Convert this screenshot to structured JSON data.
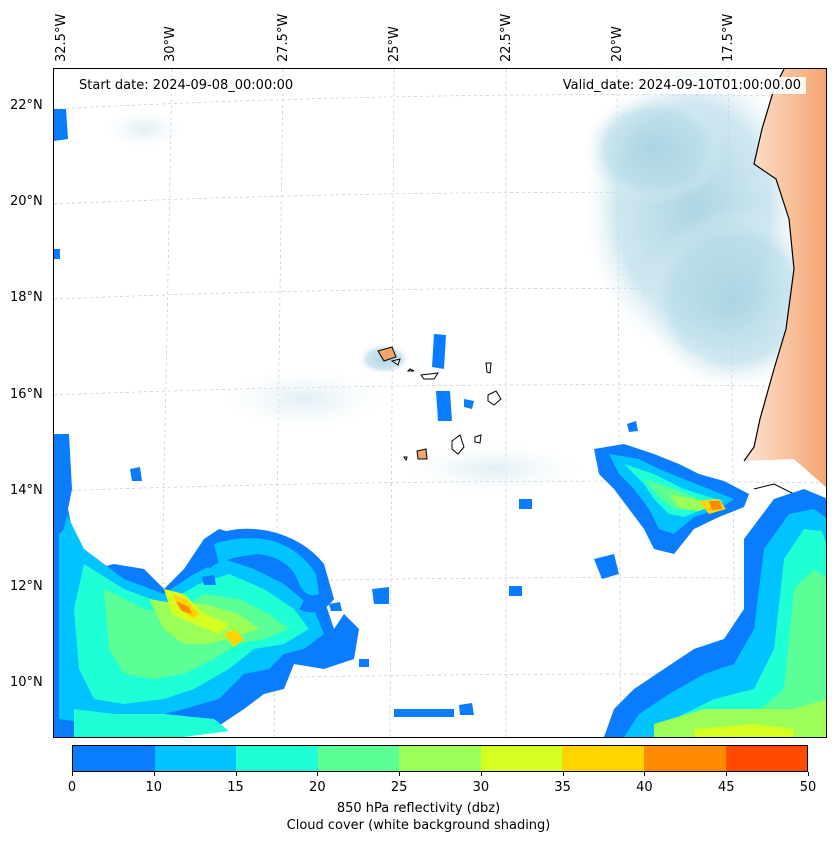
{
  "map": {
    "start_date": "Start date: 2024-09-08_00:00:00",
    "valid_date": "Valid_date: 2024-09-10T01:00:00.00",
    "lon_labels": [
      "32.5°W",
      "30°W",
      "27.5°W",
      "25°W",
      "22.5°W",
      "20°W",
      "17.5°W"
    ],
    "lat_labels": [
      "22°N",
      "20°N",
      "18°N",
      "16°N",
      "14°N",
      "12°N",
      "10°N"
    ]
  },
  "colorbar": {
    "ticks": [
      "0",
      "10",
      "15",
      "20",
      "25",
      "30",
      "35",
      "40",
      "45",
      "50"
    ],
    "colors": [
      "#0a7cff",
      "#00c3ff",
      "#1effd6",
      "#5cff96",
      "#9cff58",
      "#d4ff20",
      "#ffd400",
      "#ff8a00",
      "#ff4a00"
    ],
    "label_line1": "850 hPa reflectivity (dbz)",
    "label_line2": "Cloud cover (white background shading)"
  }
}
